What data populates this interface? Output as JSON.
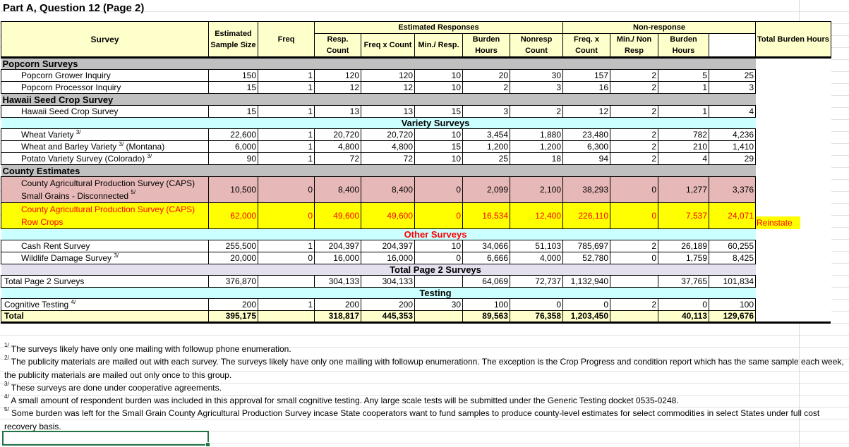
{
  "title": "Part A, Question 12 (Page 2)",
  "header": {
    "survey": "Survey",
    "sample_size": "Estimated Sample Size",
    "freq": "Freq",
    "est_responses": "Estimated Responses",
    "non_response": "Non-response",
    "total_burden": "Total Burden Hours",
    "resp_count": "Resp. Count",
    "freq_x_count": "Freq x Count",
    "min_resp": "Min./ Resp.",
    "burden_hours": "Burden Hours",
    "nonresp_count": "Nonresp Count",
    "nr_freq_x_count": "Freq. x Count",
    "min_non_resp": "Min./ Non Resp",
    "nr_burden_hours": "Burden Hours"
  },
  "rows": [
    {
      "type": "section",
      "label": "Popcorn Surveys"
    },
    {
      "type": "data",
      "label": "Popcorn Grower Inquiry",
      "cells": [
        "150",
        "1",
        "120",
        "120",
        "10",
        "20",
        "30",
        "157",
        "2",
        "5",
        "25"
      ]
    },
    {
      "type": "data",
      "label": "Popcorn Processor Inquiry",
      "cells": [
        "15",
        "1",
        "12",
        "12",
        "10",
        "2",
        "3",
        "16",
        "2",
        "1",
        "3"
      ]
    },
    {
      "type": "section",
      "label": "Hawaii Seed Crop Survey"
    },
    {
      "type": "data",
      "label": "Hawaii Seed Crop Survey",
      "cells": [
        "15",
        "1",
        "13",
        "13",
        "15",
        "3",
        "2",
        "12",
        "2",
        "1",
        "4"
      ]
    },
    {
      "type": "band",
      "label": "Variety Surveys"
    },
    {
      "type": "data",
      "label": "Wheat Variety",
      "sup": "3/",
      "cells": [
        "22,600",
        "1",
        "20,720",
        "20,720",
        "10",
        "3,454",
        "1,880",
        "23,480",
        "2",
        "782",
        "4,236"
      ]
    },
    {
      "type": "data",
      "label": "Wheat and Barley Variety",
      "sup": "3/",
      "suffix": " (Montana)",
      "cells": [
        "6,000",
        "1",
        "4,800",
        "4,800",
        "15",
        "1,200",
        "1,200",
        "6,300",
        "2",
        "210",
        "1,410"
      ]
    },
    {
      "type": "data",
      "label": "Potato Variety Survey (Colorado)",
      "sup": "3/",
      "cells": [
        "90",
        "1",
        "72",
        "72",
        "10",
        "25",
        "18",
        "94",
        "2",
        "4",
        "29"
      ]
    },
    {
      "type": "section",
      "label": "County Estimates"
    },
    {
      "type": "pink",
      "label": "County Agricultural Production Survey (CAPS) Small Grains - Disconnected",
      "sup": "5/",
      "cells": [
        "10,500",
        "0",
        "8,400",
        "8,400",
        "0",
        "2,099",
        "2,100",
        "38,293",
        "0",
        "1,277",
        "3,376"
      ]
    },
    {
      "type": "yellow",
      "label": "County Agricultural Production Survey (CAPS) Row Crops",
      "cells": [
        "62,000",
        "0",
        "49,600",
        "49,600",
        "0",
        "16,534",
        "12,400",
        "226,110",
        "0",
        "7,537",
        "24,071"
      ]
    },
    {
      "type": "band-red",
      "label": "Other Surveys"
    },
    {
      "type": "data",
      "label": "Cash Rent Survey",
      "cells": [
        "255,500",
        "1",
        "204,397",
        "204,397",
        "10",
        "34,066",
        "51,103",
        "785,697",
        "2",
        "26,189",
        "60,255"
      ]
    },
    {
      "type": "data",
      "label": "Wildlife Damage Survey",
      "sup": "3/",
      "cells": [
        "20,000",
        "0",
        "16,000",
        "16,000",
        "0",
        "6,666",
        "4,000",
        "52,780",
        "0",
        "1,759",
        "8,425"
      ]
    },
    {
      "type": "band-purple",
      "label": "Total Page 2 Surveys"
    },
    {
      "type": "flush",
      "label": "Total Page 2 Surveys",
      "cells": [
        "376,870",
        "",
        "304,133",
        "304,133",
        "",
        "64,069",
        "72,737",
        "1,132,940",
        "",
        "37,765",
        "101,834"
      ]
    },
    {
      "type": "band",
      "label": "Testing"
    },
    {
      "type": "flush",
      "label": "Cognitive Testing",
      "sup": "4/",
      "cells": [
        "200",
        "1",
        "200",
        "200",
        "30",
        "100",
        "0",
        "0",
        "2",
        "0",
        "100"
      ]
    },
    {
      "type": "total",
      "label": "Total",
      "cells": [
        "395,175",
        "",
        "318,817",
        "445,353",
        "",
        "89,563",
        "76,358",
        "1,203,450",
        "",
        "40,113",
        "129,676"
      ]
    }
  ],
  "side_note": "Reinstate",
  "footnotes": [
    {
      "mark": "1/",
      "text": "The surveys likely have only one mailing with followup phone enumeration."
    },
    {
      "mark": "2/",
      "text": "The publicity materials are mailed out with each survey.  The surveys likely have only one mailing with followup enumerationn.  The exception is the Crop Progress and condition report which has the same sample each week, the publicity materials are mailed out only once to this group."
    },
    {
      "mark": "3/",
      "text": "These surveys are done under cooperative agreements."
    },
    {
      "mark": "4/",
      "text": "A small amount of respondent burden was included in this approval for small cognitive testing.  Any large scale tests will be submitted under the Generic Testing docket 0535-0248."
    },
    {
      "mark": "5/",
      "text": "Some burden was left for the Small Grain County Agricultural Production Survey incase State cooperators want to fund samples to produce county-level estimates for select commodities in select States under full cost recovery basis."
    }
  ],
  "colors": {
    "header_bg": "#ffffcc",
    "section_bg": "#c0c0c0",
    "band_bg": "#ccffff",
    "pink_bg": "#e6b8b7",
    "highlight_bg": "#ffff00",
    "highlight_text": "#ff0000",
    "selection": "#217346"
  }
}
